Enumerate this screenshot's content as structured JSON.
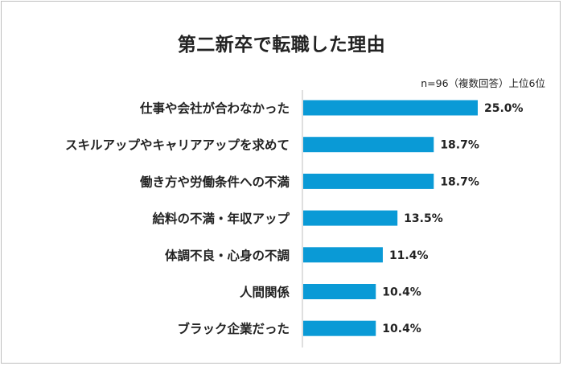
{
  "chart_data": {
    "type": "bar",
    "orientation": "horizontal",
    "title": "第二新卒で転職した理由",
    "note": "n=96（複数回答）上位6位",
    "categories": [
      "仕事や会社が合わなかった",
      "スキルアップやキャリアアップを求めて",
      "働き方や労働条件への不満",
      "給料の不満・年収アップ",
      "体調不良・心身の不調",
      "人間関係",
      "ブラック企業だった"
    ],
    "values": [
      25.0,
      18.7,
      18.7,
      13.5,
      11.4,
      10.4,
      10.4
    ],
    "value_labels": [
      "25.0%",
      "18.7%",
      "18.7%",
      "13.5%",
      "11.4%",
      "10.4%",
      "10.4%"
    ],
    "bar_color": "#0a9ad6",
    "xlim": [
      0,
      25.0
    ],
    "grid": false
  }
}
